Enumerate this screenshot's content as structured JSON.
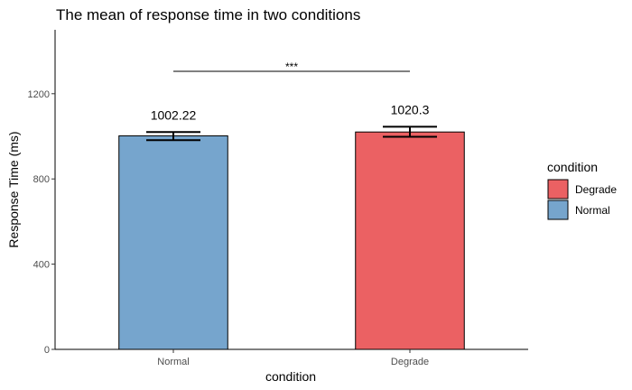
{
  "chart_data": {
    "type": "bar",
    "title": "The mean of response time in two conditions",
    "xlabel": "condition",
    "ylabel": "Response Time (ms)",
    "categories": [
      "Normal",
      "Degrade"
    ],
    "values": [
      1002.22,
      1020.3
    ],
    "value_labels": [
      "1002.22",
      "1020.3"
    ],
    "error_bars": [
      {
        "low": 982,
        "high": 1020
      },
      {
        "low": 998,
        "high": 1045
      }
    ],
    "ylim": [
      0,
      1500
    ],
    "yticks": [
      0,
      400,
      800,
      1200
    ],
    "ytick_labels": [
      "0",
      "400",
      "800",
      "1200"
    ],
    "significance": {
      "label": "***",
      "y": 1305,
      "from": "Normal",
      "to": "Degrade"
    },
    "grid": false,
    "legend": {
      "title": "condition",
      "position": "right",
      "items": [
        {
          "label": "Degrade",
          "color": "#eb6163"
        },
        {
          "label": "Normal",
          "color": "#76a5cd"
        }
      ]
    },
    "colors": {
      "Normal": "#76a5cd",
      "Degrade": "#eb6163"
    }
  }
}
